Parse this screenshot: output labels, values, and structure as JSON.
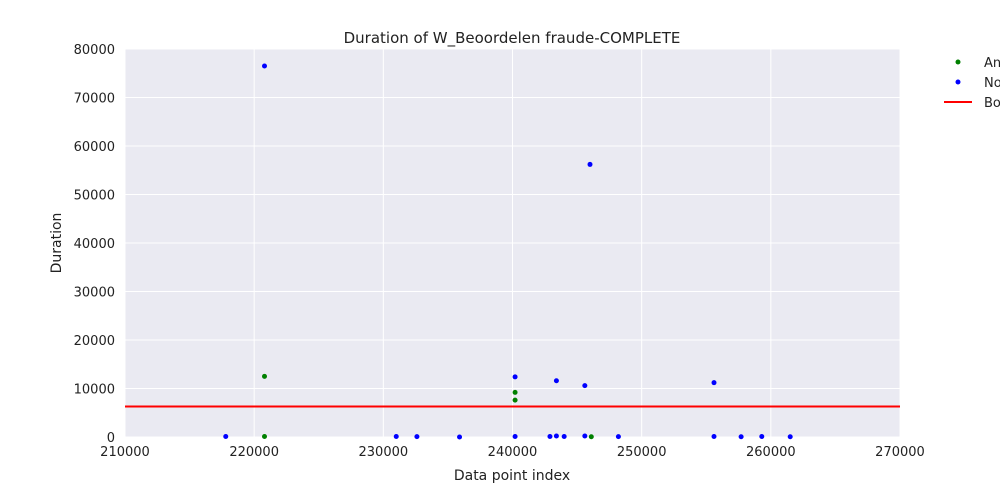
{
  "chart_data": {
    "type": "scatter",
    "title": "Duration of W_Beoordelen fraude-COMPLETE",
    "xlabel": "Data point index",
    "ylabel": "Duration",
    "xlim": [
      210000,
      270000
    ],
    "ylim": [
      0,
      80000
    ],
    "xticks": [
      "210000",
      "220000",
      "230000",
      "240000",
      "250000",
      "260000",
      "270000"
    ],
    "yticks": [
      "0",
      "10000",
      "20000",
      "30000",
      "40000",
      "50000",
      "60000",
      "70000",
      "80000"
    ],
    "grid": true,
    "legend_position": "outside-right",
    "legend": [
      "An",
      "No",
      "Bo"
    ],
    "series": [
      {
        "name": "An",
        "color": "#008000",
        "points": [
          [
            220800,
            12500
          ],
          [
            220800,
            100
          ],
          [
            240200,
            9200
          ],
          [
            240200,
            7600
          ],
          [
            246100,
            50
          ]
        ]
      },
      {
        "name": "No",
        "color": "#0000ff",
        "points": [
          [
            217800,
            100
          ],
          [
            220800,
            76500
          ],
          [
            231000,
            100
          ],
          [
            232600,
            80
          ],
          [
            235900,
            0
          ],
          [
            240200,
            12400
          ],
          [
            240200,
            100
          ],
          [
            242900,
            100
          ],
          [
            243400,
            11600
          ],
          [
            243400,
            200
          ],
          [
            244000,
            100
          ],
          [
            245600,
            10600
          ],
          [
            245600,
            200
          ],
          [
            246000,
            56200
          ],
          [
            248200,
            80
          ],
          [
            255600,
            11200
          ],
          [
            255600,
            100
          ],
          [
            257700,
            50
          ],
          [
            259300,
            100
          ],
          [
            261500,
            50
          ]
        ]
      }
    ],
    "lines": [
      {
        "name": "Bo",
        "color": "#ff0000",
        "y": 6300
      }
    ]
  }
}
